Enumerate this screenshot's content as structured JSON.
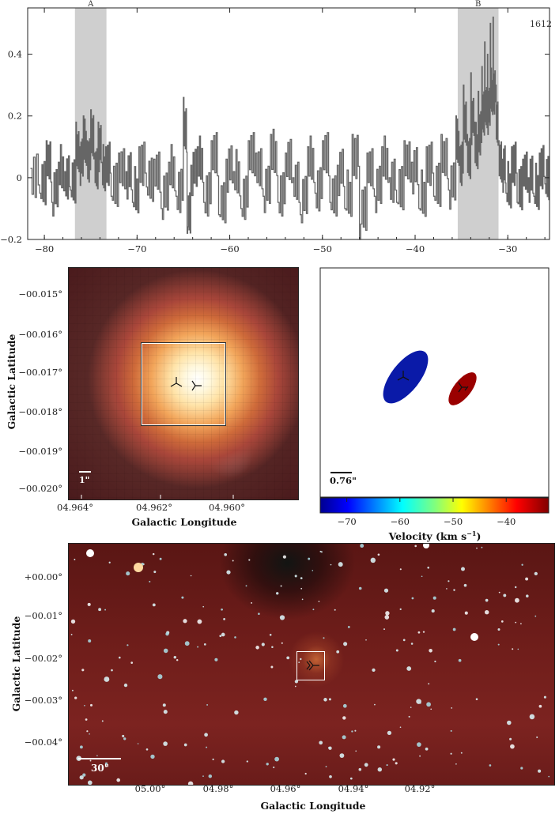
{
  "chart_data": [
    {
      "type": "line",
      "label_text": "1612",
      "shaded_regions": [
        {
          "label": "A",
          "from": -76.7,
          "to": -73.3
        },
        {
          "label": "B",
          "from": -35.4,
          "to": -31.0
        }
      ],
      "xlim": [
        -81.8,
        -25.5
      ],
      "ylim": [
        -0.2,
        0.55
      ],
      "xticks": [
        "−80",
        "−70",
        "−60",
        "−50",
        "−40",
        "−30"
      ],
      "xtick_values": [
        -80,
        -70,
        -60,
        -50,
        -40,
        -30
      ],
      "yticks": [
        "−0.2",
        "0",
        "0.2",
        "0.4"
      ],
      "ytick_values": [
        -0.2,
        0,
        0.2,
        0.4
      ],
      "series": [
        {
          "x": [
            -81.5,
            -80.5,
            -79.8,
            -79.2,
            -78.5,
            -77.8,
            -77.2,
            -76.6,
            -76.2,
            -75.8,
            -75.4,
            -75.0,
            -74.6,
            -74.2,
            -73.8,
            -73.4,
            -72.8,
            -72.0,
            -71.2,
            -70.5,
            -69.8,
            -69.0,
            -68.2,
            -67.4,
            -66.6,
            -65.8,
            -65.0,
            -64.6,
            -64.2,
            -63.5,
            -62.8,
            -62.0,
            -61.2,
            -60.4,
            -59.6,
            -58.8,
            -58.0,
            -57.2,
            -56.4,
            -55.6,
            -54.8,
            -54.0,
            -53.2,
            -52.4,
            -51.6,
            -50.8,
            -50.0,
            -49.2,
            -48.4,
            -47.6,
            -46.8,
            -46.0,
            -45.2,
            -44.4,
            -43.6,
            -42.8,
            -42.0,
            -41.2,
            -40.4,
            -39.6,
            -38.8,
            -38.0,
            -37.2,
            -36.4,
            -35.6,
            -35.2,
            -34.8,
            -34.4,
            -34.0,
            -33.6,
            -33.2,
            -32.8,
            -32.5,
            -32.2,
            -31.9,
            -31.6,
            -31.3,
            -31.0,
            -30.6,
            -30.2,
            -29.6,
            -29.0,
            -28.4,
            -27.8,
            -27.2,
            -26.6,
            -26.0
          ],
          "y": [
            0.03,
            -0.05,
            0.12,
            -0.08,
            0.05,
            0.02,
            -0.04,
            0.18,
            0.1,
            0.2,
            0.12,
            0.22,
            0.08,
            0.18,
            0.05,
            0.1,
            -0.06,
            0.08,
            0.02,
            -0.08,
            0.1,
            -0.03,
            0.06,
            -0.1,
            0.05,
            -0.06,
            0.26,
            -0.18,
            0.04,
            0.1,
            -0.08,
            0.12,
            -0.12,
            0.06,
            0.02,
            -0.1,
            0.12,
            0.08,
            -0.06,
            0.14,
            -0.08,
            0.08,
            0.0,
            -0.12,
            0.1,
            -0.05,
            0.12,
            -0.08,
            0.04,
            -0.1,
            0.14,
            -0.2,
            0.08,
            -0.06,
            0.1,
            0.0,
            -0.08,
            0.12,
            0.05,
            -0.1,
            0.1,
            -0.06,
            0.14,
            -0.04,
            0.2,
            0.1,
            0.3,
            0.14,
            0.34,
            0.18,
            0.28,
            0.36,
            0.44,
            0.4,
            0.5,
            0.52,
            0.3,
            0.12,
            0.06,
            -0.05,
            0.1,
            -0.08,
            0.06,
            0.0,
            -0.06,
            0.08,
            -0.02
          ]
        }
      ]
    },
    {
      "type": "image",
      "xlabel": "Galactic Longitude",
      "ylabel": "Galactic Latitude",
      "xticks": [
        "04.964°",
        "04.962°",
        "04.960°"
      ],
      "yticks": [
        "−00.015°",
        "−00.016°",
        "−00.017°",
        "−00.018°",
        "−00.019°",
        "−00.020°"
      ],
      "scale_bar": "1\""
    },
    {
      "type": "scatter",
      "colorbar_label": "Velocity (km s",
      "colorbar_label_sup": "−1",
      "colorbar_label_end": ")",
      "colorbar_ticks": [
        "−70",
        "−60",
        "−50",
        "−40"
      ],
      "colorbar_tick_values": [
        -70,
        -60,
        -50,
        -40
      ],
      "colorbar_range": [
        -75,
        -32
      ],
      "scale_bar": "0.76\"",
      "components": [
        {
          "velocity": -75,
          "color": "#0a1aa8"
        },
        {
          "velocity": -33,
          "color": "#9a0000"
        }
      ]
    },
    {
      "type": "image",
      "xlabel": "Galactic Longitude",
      "ylabel": "Galactic Latitude",
      "xticks": [
        "05.00°",
        "04.98°",
        "04.96°",
        "04.94°",
        "04.92°"
      ],
      "yticks": [
        "+00.00°",
        "−00.01°",
        "−00.02°",
        "−00.03°",
        "−00.04°"
      ],
      "scale_bar": "30\""
    }
  ]
}
